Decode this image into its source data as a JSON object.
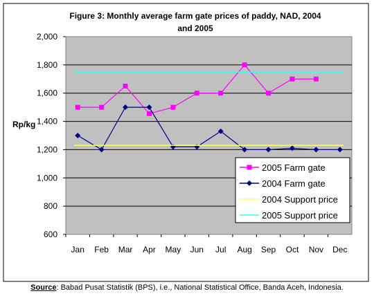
{
  "chart_data": {
    "type": "line",
    "title_lines": [
      "Figure 3: Monthly average farm gate prices of paddy, NAD, 2004",
      "and 2005"
    ],
    "ylabel": "Rp/kg",
    "xlabel": "",
    "categories": [
      "Jan",
      "Feb",
      "Mar",
      "Apr",
      "May",
      "Jun",
      "Jul",
      "Aug",
      "Sep",
      "Oct",
      "Nov",
      "Dec"
    ],
    "ylim": [
      600,
      2000
    ],
    "yticks": [
      600,
      800,
      1000,
      1200,
      1400,
      1600,
      1800,
      2000
    ],
    "ytick_labels": [
      "600",
      "800",
      "1,000",
      "1,200",
      "1,400",
      "1,600",
      "1,800",
      "2,000"
    ],
    "grid": true,
    "legend_position": "bottom-right",
    "plot_background": "#c0c0c0",
    "series": [
      {
        "name": "2005 Farm gate",
        "marker": "square",
        "color": "#ff00ff",
        "values": [
          1500,
          1500,
          1650,
          1455,
          1500,
          1600,
          1600,
          1800,
          1600,
          1700,
          1700,
          null
        ]
      },
      {
        "name": "2004 Farm gate",
        "marker": "diamond",
        "color": "#000080",
        "values": [
          1300,
          1200,
          1500,
          1500,
          1220,
          1220,
          1330,
          1200,
          1200,
          1210,
          1200,
          1200
        ]
      },
      {
        "name": "2004 Support price",
        "marker": "none",
        "color": "#ffff66",
        "values": [
          1230,
          1230,
          1230,
          1230,
          1230,
          1230,
          1230,
          1230,
          1230,
          1230,
          1230,
          1230
        ]
      },
      {
        "name": "2005 Support price",
        "marker": "none",
        "color": "#33ffff",
        "values": [
          1750,
          1750,
          1750,
          1750,
          1750,
          1750,
          1750,
          1750,
          1750,
          1750,
          1750,
          1750
        ]
      }
    ]
  },
  "source": {
    "label": "Source",
    "text": ": Babad Pusat Statistik (BPS), i.e., National Statistical Office, Banda Aceh, Indonesia."
  }
}
